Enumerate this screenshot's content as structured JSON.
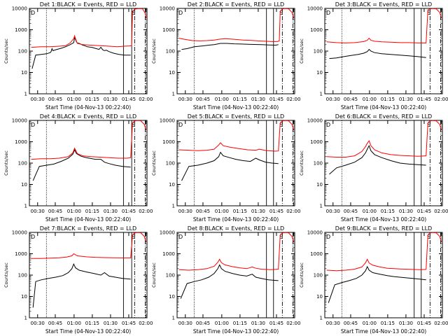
{
  "shared": {
    "xlabel": "Start Time (04-Nov-13 00:22:40)",
    "ylabel": "Counts/sec",
    "x_ticks": [
      "00:30",
      "00:45",
      "01:00",
      "01:15",
      "01:30",
      "01:45",
      "02:00"
    ],
    "y_ticks": [
      "1",
      "10",
      "100",
      "1000",
      "10000"
    ],
    "corner_markers": [
      "D",
      "S"
    ]
  },
  "chart_data": [
    {
      "type": "line",
      "title": "Det 1:BLACK = Events, RED = LLD",
      "xlabel": "Start Time (04-Nov-13 00:22:40)",
      "ylabel": "Counts/sec",
      "ylog": true,
      "ylim": [
        1,
        10000
      ],
      "series": [
        {
          "color": "#000000",
          "x": [
            0.19,
            0.2,
            0.24,
            0.3,
            0.36,
            0.4,
            0.41,
            0.42,
            0.43,
            0.46,
            0.52,
            0.57,
            0.62,
            0.66,
            0.67,
            0.68,
            0.69,
            0.7,
            0.72,
            0.74,
            0.76,
            0.78,
            0.81,
            0.86,
            0.91,
            0.94,
            0.96,
            0.98,
            1.0,
            1.02,
            1.05,
            1.1,
            1.16,
            1.22,
            1.28,
            1.29
          ],
          "y": [
            null,
            15,
            65,
            70,
            75,
            85,
            95,
            130,
            105,
            115,
            135,
            160,
            200,
            250,
            420,
            350,
            270,
            240,
            230,
            210,
            190,
            180,
            160,
            150,
            130,
            120,
            150,
            115,
            105,
            110,
            95,
            80,
            70,
            65,
            65,
            65
          ]
        },
        {
          "color": "#ff0000",
          "x": [
            0.19,
            0.3,
            0.4,
            0.5,
            0.57,
            0.62,
            0.66,
            0.67,
            0.68,
            0.7,
            0.76,
            0.85,
            0.95,
            1.05,
            1.14,
            1.22,
            1.28,
            1.3,
            1.31,
            1.33,
            1.35,
            1.38,
            1.42,
            1.45,
            1.46
          ],
          "y": [
            150,
            160,
            160,
            170,
            180,
            240,
            380,
            520,
            380,
            230,
            200,
            190,
            180,
            170,
            160,
            170,
            175,
            180,
            6500,
            9000,
            9500,
            9800,
            9600,
            6000,
            3500
          ]
        }
      ]
    },
    {
      "type": "line",
      "title": "Det 2:BLACK = Events, RED = LLD",
      "xlabel": "Start Time (04-Nov-13 00:22:40)",
      "ylabel": "Counts/sec",
      "ylog": true,
      "ylim": [
        1,
        10000
      ],
      "series": [
        {
          "color": "#000000",
          "x": [
            0.19,
            0.22,
            0.28,
            0.36,
            0.45,
            0.52,
            0.58,
            0.65,
            0.72,
            0.8,
            0.88,
            0.95,
            1.02,
            1.1,
            1.18,
            1.26,
            1.29
          ],
          "y": [
            null,
            120,
            130,
            160,
            175,
            190,
            200,
            230,
            230,
            220,
            215,
            210,
            205,
            200,
            195,
            190,
            200
          ]
        },
        {
          "color": "#ff0000",
          "x": [
            0.19,
            0.26,
            0.34,
            0.42,
            0.5,
            0.58,
            0.64,
            0.7,
            0.76,
            0.82,
            0.9,
            0.98,
            1.06,
            1.14,
            1.22,
            1.28,
            1.3,
            1.31,
            1.33,
            1.36,
            1.4,
            1.44,
            1.46
          ],
          "y": [
            400,
            350,
            310,
            300,
            310,
            330,
            360,
            380,
            370,
            350,
            330,
            320,
            300,
            290,
            280,
            280,
            300,
            7000,
            9500,
            9800,
            9600,
            6500,
            3500
          ]
        }
      ]
    },
    {
      "type": "line",
      "title": "Det 3:BLACK = Events, RED = LLD",
      "xlabel": "Start Time (04-Nov-13 00:22:40)",
      "ylabel": "Counts/sec",
      "ylog": true,
      "ylim": [
        1,
        10000
      ],
      "series": [
        {
          "color": "#000000",
          "x": [
            0.19,
            0.22,
            0.3,
            0.38,
            0.46,
            0.54,
            0.6,
            0.64,
            0.66,
            0.68,
            0.72,
            0.8,
            0.9,
            1.0,
            1.1,
            1.2,
            1.29
          ],
          "y": [
            null,
            45,
            48,
            55,
            62,
            70,
            80,
            95,
            120,
            100,
            85,
            75,
            70,
            65,
            60,
            55,
            50
          ]
        },
        {
          "color": "#ff0000",
          "x": [
            0.19,
            0.3,
            0.4,
            0.5,
            0.6,
            0.64,
            0.66,
            0.68,
            0.72,
            0.8,
            0.9,
            1.0,
            1.1,
            1.2,
            1.29,
            1.31,
            1.33,
            1.36,
            1.4,
            1.44,
            1.46
          ],
          "y": [
            270,
            250,
            240,
            250,
            280,
            320,
            400,
            320,
            290,
            270,
            260,
            250,
            250,
            240,
            240,
            8500,
            9500,
            9800,
            9600,
            6500,
            3500
          ]
        }
      ]
    },
    {
      "type": "line",
      "title": "Det 4:BLACK = Events, RED = LLD",
      "xlabel": "Start Time (04-Nov-13 00:22:40)",
      "ylabel": "Counts/sec",
      "ylog": true,
      "ylim": [
        1,
        10000
      ],
      "series": [
        {
          "color": "#000000",
          "x": [
            0.19,
            0.21,
            0.28,
            0.36,
            0.44,
            0.52,
            0.6,
            0.65,
            0.67,
            0.69,
            0.74,
            0.8,
            0.9,
            0.96,
            1.0,
            1.05,
            1.12,
            1.2,
            1.29
          ],
          "y": [
            null,
            15,
            70,
            80,
            90,
            120,
            170,
            260,
            420,
            280,
            210,
            180,
            150,
            150,
            110,
            95,
            80,
            70,
            65
          ]
        },
        {
          "color": "#ff0000",
          "x": [
            0.19,
            0.3,
            0.4,
            0.5,
            0.6,
            0.65,
            0.67,
            0.7,
            0.76,
            0.85,
            0.95,
            1.05,
            1.15,
            1.25,
            1.29,
            1.31,
            1.33,
            1.36,
            1.4,
            1.44,
            1.46
          ],
          "y": [
            150,
            160,
            160,
            170,
            200,
            300,
            500,
            280,
            220,
            200,
            190,
            180,
            170,
            170,
            180,
            7500,
            9500,
            9800,
            9600,
            6500,
            3500
          ]
        }
      ]
    },
    {
      "type": "line",
      "title": "Det 5:BLACK = Events, RED = LLD",
      "xlabel": "Start Time (04-Nov-13 00:22:40)",
      "ylabel": "Counts/sec",
      "ylog": true,
      "ylim": [
        1,
        10000
      ],
      "series": [
        {
          "color": "#000000",
          "x": [
            0.19,
            0.22,
            0.3,
            0.4,
            0.5,
            0.58,
            0.63,
            0.65,
            0.68,
            0.75,
            0.82,
            0.9,
            0.98,
            1.04,
            1.08,
            1.15,
            1.22,
            1.29
          ],
          "y": [
            null,
            15,
            70,
            80,
            100,
            130,
            200,
            320,
            220,
            180,
            150,
            130,
            120,
            170,
            140,
            110,
            100,
            95
          ]
        },
        {
          "color": "#ff0000",
          "x": [
            0.19,
            0.3,
            0.4,
            0.5,
            0.58,
            0.63,
            0.65,
            0.68,
            0.76,
            0.85,
            0.95,
            1.04,
            1.08,
            1.15,
            1.25,
            1.29,
            1.31,
            1.33,
            1.36,
            1.4,
            1.44,
            1.46
          ],
          "y": [
            420,
            400,
            380,
            400,
            450,
            700,
            900,
            650,
            550,
            480,
            420,
            400,
            450,
            390,
            360,
            370,
            7500,
            9500,
            9800,
            9600,
            6500,
            3500
          ]
        }
      ]
    },
    {
      "type": "line",
      "title": "Det 6:BLACK = Events, RED = LLD",
      "xlabel": "Start Time (04-Nov-13 00:22:40)",
      "ylabel": "Counts/sec",
      "ylog": true,
      "ylim": [
        1,
        10000
      ],
      "series": [
        {
          "color": "#000000",
          "x": [
            0.19,
            0.22,
            0.3,
            0.4,
            0.5,
            0.58,
            0.62,
            0.64,
            0.66,
            0.68,
            0.72,
            0.8,
            0.9,
            1.0,
            1.1,
            1.2,
            1.29
          ],
          "y": [
            null,
            30,
            60,
            80,
            110,
            180,
            300,
            450,
            650,
            380,
            250,
            180,
            130,
            100,
            90,
            85,
            80
          ]
        },
        {
          "color": "#ff0000",
          "x": [
            0.19,
            0.3,
            0.4,
            0.5,
            0.58,
            0.62,
            0.64,
            0.66,
            0.68,
            0.72,
            0.8,
            0.9,
            1.0,
            1.1,
            1.2,
            1.29,
            1.31,
            1.33,
            1.36,
            1.4,
            1.44,
            1.46
          ],
          "y": [
            200,
            190,
            190,
            220,
            350,
            600,
            850,
            1100,
            650,
            420,
            300,
            250,
            230,
            220,
            210,
            220,
            7500,
            9500,
            9800,
            9600,
            6500,
            3500
          ]
        }
      ]
    },
    {
      "type": "line",
      "title": "Det 7:BLACK = Events, RED = LLD",
      "xlabel": "Start Time (04-Nov-13 00:22:40)",
      "ylabel": "Counts/sec",
      "ylog": true,
      "ylim": [
        1,
        10000
      ],
      "series": [
        {
          "color": "#000000",
          "x": [
            0.19,
            0.21,
            0.24,
            0.3,
            0.38,
            0.46,
            0.54,
            0.6,
            0.64,
            0.66,
            0.68,
            0.72,
            0.8,
            0.88,
            0.96,
            1.0,
            1.05,
            1.12,
            1.2,
            1.29
          ],
          "y": [
            null,
            3,
            50,
            60,
            70,
            80,
            95,
            130,
            200,
            330,
            220,
            170,
            140,
            120,
            100,
            130,
            90,
            80,
            70,
            65
          ]
        },
        {
          "color": "#ff0000",
          "x": [
            0.19,
            0.3,
            0.4,
            0.5,
            0.58,
            0.64,
            0.66,
            0.7,
            0.8,
            0.9,
            1.0,
            1.1,
            1.2,
            1.29,
            1.31,
            1.33,
            1.36,
            1.4,
            1.44,
            1.46
          ],
          "y": [
            600,
            600,
            620,
            650,
            700,
            800,
            1000,
            800,
            720,
            680,
            660,
            650,
            640,
            640,
            7500,
            9500,
            9800,
            9600,
            6500,
            3500
          ]
        }
      ]
    },
    {
      "type": "line",
      "title": "Det 8:BLACK = Events, RED = LLD",
      "xlabel": "Start Time (04-Nov-13 00:22:40)",
      "ylabel": "Counts/sec",
      "ylog": true,
      "ylim": [
        1,
        10000
      ],
      "series": [
        {
          "color": "#000000",
          "x": [
            0.19,
            0.21,
            0.28,
            0.36,
            0.44,
            0.52,
            0.58,
            0.62,
            0.64,
            0.66,
            0.7,
            0.78,
            0.86,
            0.94,
            1.0,
            1.04,
            1.1,
            1.18,
            1.29
          ],
          "y": [
            null,
            8,
            40,
            50,
            60,
            80,
            120,
            200,
            300,
            200,
            150,
            120,
            100,
            90,
            110,
            80,
            70,
            60,
            55
          ]
        },
        {
          "color": "#ff0000",
          "x": [
            0.19,
            0.3,
            0.4,
            0.5,
            0.58,
            0.62,
            0.64,
            0.66,
            0.7,
            0.78,
            0.86,
            0.94,
            1.0,
            1.04,
            1.1,
            1.2,
            1.29,
            1.31,
            1.33,
            1.36,
            1.4,
            1.44,
            1.46
          ],
          "y": [
            180,
            170,
            180,
            200,
            260,
            400,
            550,
            380,
            300,
            250,
            220,
            200,
            240,
            210,
            190,
            180,
            190,
            7500,
            9500,
            9800,
            9600,
            6500,
            3500
          ]
        }
      ]
    },
    {
      "type": "line",
      "title": "Det 9:BLACK = Events, RED = LLD",
      "xlabel": "Start Time (04-Nov-13 00:22:40)",
      "ylabel": "Counts/sec",
      "ylog": true,
      "ylim": [
        1,
        10000
      ],
      "series": [
        {
          "color": "#000000",
          "x": [
            0.19,
            0.21,
            0.28,
            0.36,
            0.44,
            0.52,
            0.58,
            0.62,
            0.64,
            0.66,
            0.7,
            0.78,
            0.86,
            0.94,
            1.0,
            1.06,
            1.14,
            1.22,
            1.29
          ],
          "y": [
            null,
            5,
            35,
            45,
            55,
            70,
            100,
            160,
            250,
            170,
            130,
            110,
            95,
            85,
            80,
            75,
            70,
            65,
            60
          ]
        },
        {
          "color": "#ff0000",
          "x": [
            0.19,
            0.3,
            0.4,
            0.5,
            0.58,
            0.62,
            0.64,
            0.66,
            0.7,
            0.78,
            0.86,
            0.94,
            1.0,
            1.06,
            1.14,
            1.22,
            1.29,
            1.31,
            1.33,
            1.36,
            1.4,
            1.44,
            1.46
          ],
          "y": [
            170,
            160,
            170,
            190,
            240,
            380,
            550,
            370,
            290,
            240,
            210,
            200,
            195,
            190,
            185,
            180,
            185,
            7500,
            9500,
            9800,
            9600,
            6500,
            3500
          ]
        }
      ]
    }
  ]
}
